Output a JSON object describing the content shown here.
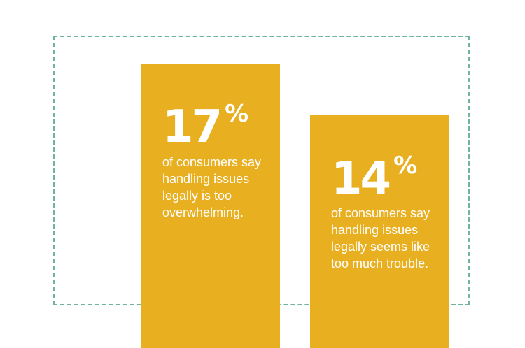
{
  "colors": {
    "bar": "#e8b021",
    "frame": "#6fb3a3",
    "text": "#ffffff"
  },
  "chart_data": {
    "type": "bar",
    "title": "",
    "xlabel": "",
    "ylabel": "",
    "ylim": [
      0,
      20
    ],
    "grid": false,
    "categories": [
      "of consumers say handling issues legally is too overwhelming.",
      "of consumers say handling issues legally seems like too much trouble."
    ],
    "values": [
      17,
      14
    ],
    "data_labels": [
      {
        "number": "17",
        "unit": "%",
        "lines": [
          "of consumers say",
          "handling issues",
          "legally is too",
          "overwhelming."
        ]
      },
      {
        "number": "14",
        "unit": "%",
        "lines": [
          "of consumers say",
          "handling issues",
          "legally seems like",
          "too much trouble."
        ]
      }
    ]
  }
}
